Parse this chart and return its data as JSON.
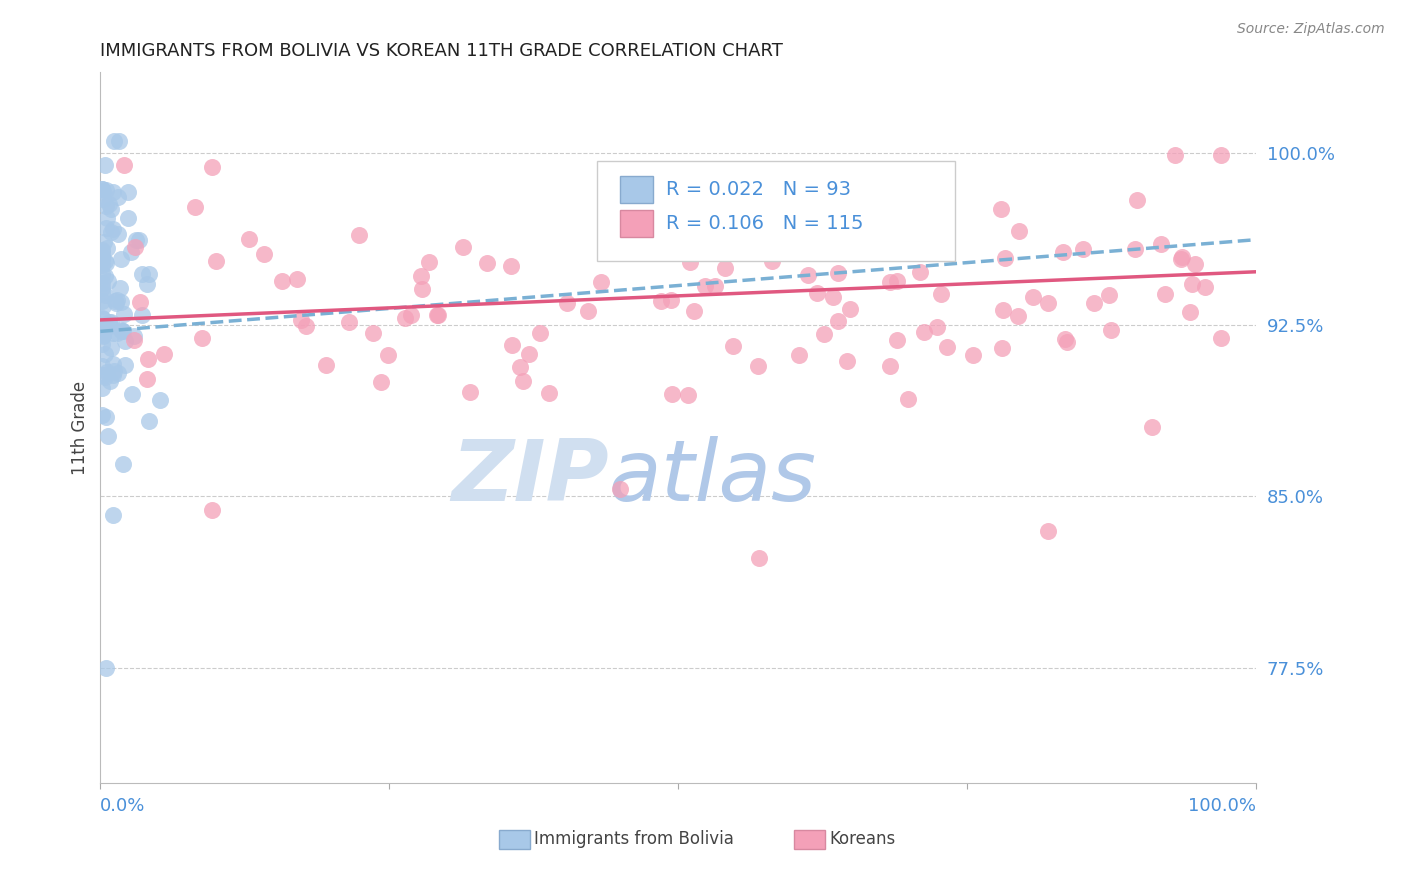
{
  "title": "IMMIGRANTS FROM BOLIVIA VS KOREAN 11TH GRADE CORRELATION CHART",
  "source": "Source: ZipAtlas.com",
  "ylabel": "11th Grade",
  "ytick_labels": [
    "77.5%",
    "85.0%",
    "92.5%",
    "100.0%"
  ],
  "ytick_values": [
    0.775,
    0.85,
    0.925,
    1.0
  ],
  "xlim": [
    0.0,
    1.0
  ],
  "ylim": [
    0.725,
    1.035
  ],
  "legend_r_bolivia": "0.022",
  "legend_n_bolivia": "93",
  "legend_r_korean": "0.106",
  "legend_n_korean": "115",
  "bolivia_color": "#a8c8e8",
  "korean_color": "#f4a0b8",
  "trendline_bolivia_color": "#7ab0d4",
  "trendline_korean_color": "#e05880",
  "bolivia_trend_y_start": 0.922,
  "bolivia_trend_y_end": 0.962,
  "korean_trend_y_start": 0.927,
  "korean_trend_y_end": 0.948,
  "background_color": "#ffffff",
  "grid_color": "#cccccc",
  "title_color": "#222222",
  "axis_label_color": "#4a90d9",
  "ylabel_color": "#444444",
  "watermark_zip": "ZIP",
  "watermark_atlas": "atlas",
  "watermark_color_zip": "#d0dff0",
  "watermark_color_atlas": "#b0c8e8"
}
